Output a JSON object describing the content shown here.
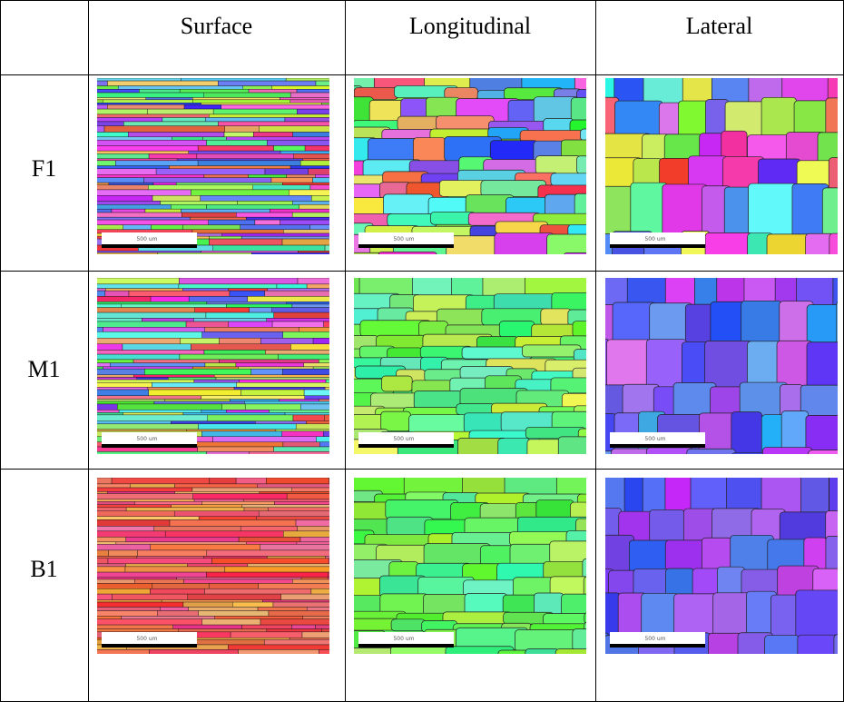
{
  "table": {
    "columns": [
      "Surface",
      "Longitudinal",
      "Lateral"
    ],
    "rows": [
      "F1",
      "M1",
      "B1"
    ]
  },
  "scale_bar": "500 um"
}
